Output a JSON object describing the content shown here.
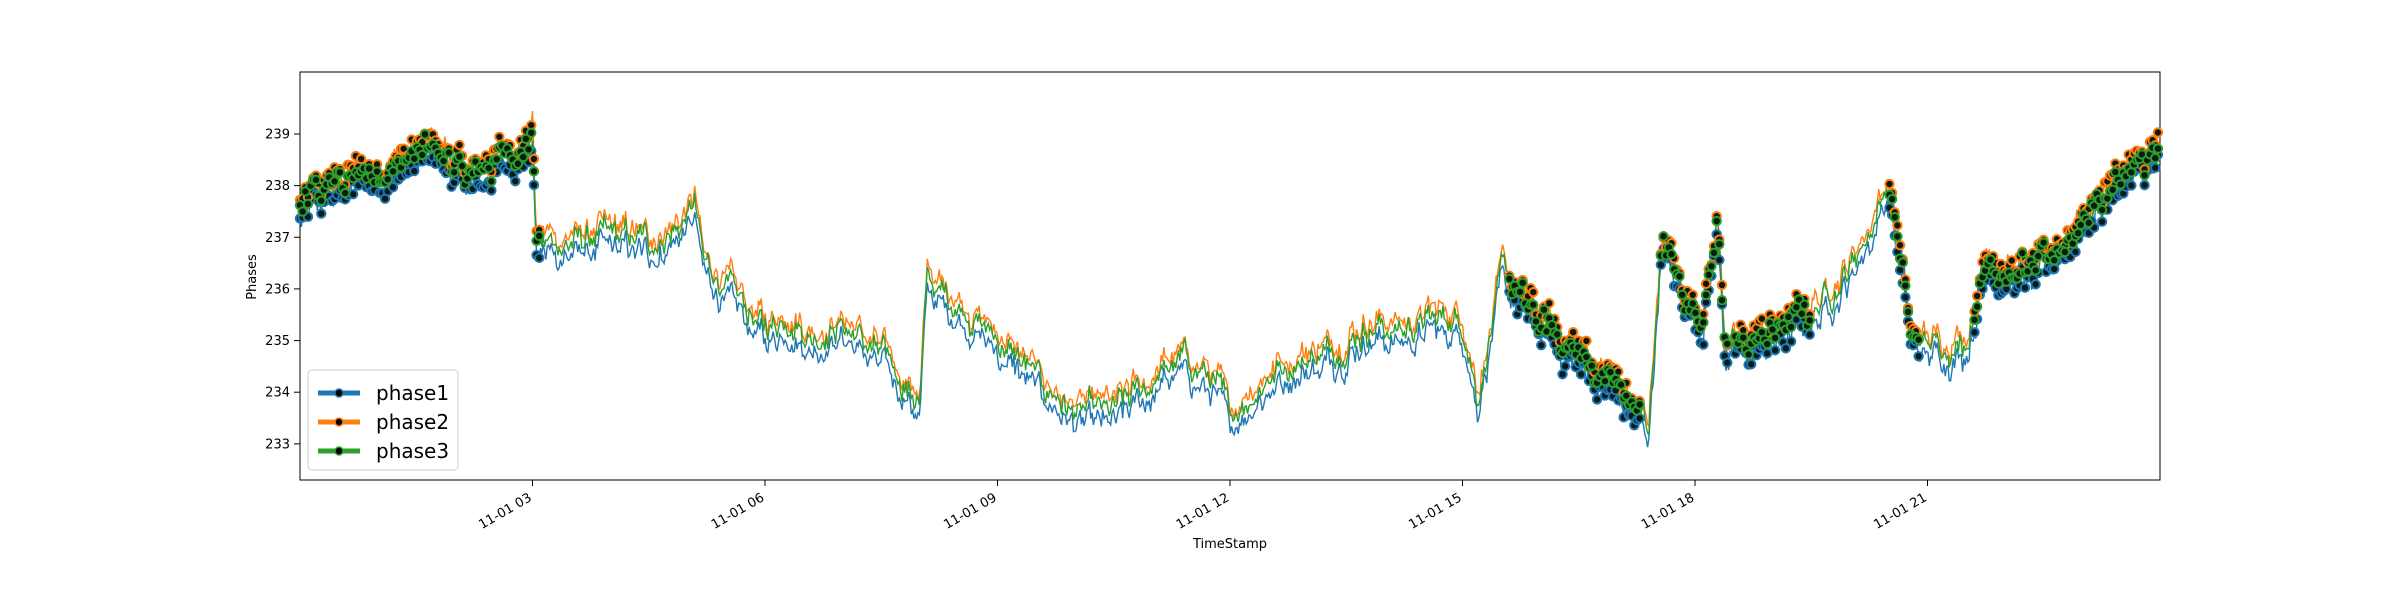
{
  "chart_data": {
    "type": "line",
    "title": "",
    "xlabel": "TimeStamp",
    "ylabel": "Phases",
    "x_range": [
      "2000-11-01T00:00",
      "2000-11-01T23:59"
    ],
    "ylim": [
      232.3,
      240.2
    ],
    "grid": false,
    "legend_position": "lower-left",
    "x_ticks": [
      {
        "label": "11-01 03",
        "hour": 3
      },
      {
        "label": "11-01 06",
        "hour": 6
      },
      {
        "label": "11-01 09",
        "hour": 9
      },
      {
        "label": "11-01 12",
        "hour": 12
      },
      {
        "label": "11-01 15",
        "hour": 15
      },
      {
        "label": "11-01 18",
        "hour": 18
      },
      {
        "label": "11-01 21",
        "hour": 21
      }
    ],
    "y_ticks": [
      233,
      234,
      235,
      236,
      237,
      238,
      239
    ],
    "series": [
      {
        "name": "phase1",
        "color": "#1f77b4"
      },
      {
        "name": "phase2",
        "color": "#ff7f0e"
      },
      {
        "name": "phase3",
        "color": "#2ca02c"
      }
    ],
    "profile": {
      "hours": [
        0,
        0.4,
        0.9,
        1.3,
        1.8,
        2.2,
        2.5,
        2.9,
        3.0,
        3.05,
        3.5,
        4.0,
        4.5,
        4.9,
        5.1,
        5.2,
        5.5,
        6.0,
        6.3,
        6.6,
        7.0,
        7.5,
        7.8,
        8.0,
        8.1,
        8.2,
        8.6,
        9.0,
        9.3,
        9.6,
        10.0,
        10.5,
        11.0,
        11.4,
        11.8,
        12.0,
        12.4,
        12.8,
        13.3,
        13.8,
        14.2,
        14.6,
        15.0,
        15.2,
        15.5,
        15.6,
        15.9,
        16.2,
        16.6,
        17.0,
        17.4,
        17.55,
        17.65,
        17.8,
        18.1,
        18.3,
        18.4,
        18.8,
        19.2,
        19.6,
        20.0,
        20.3,
        20.5,
        20.8,
        21.1,
        21.5,
        21.8,
        22.0,
        22.4,
        22.8,
        23.3,
        23.99
      ],
      "values": [
        237.5,
        238.0,
        238.2,
        238.5,
        238.7,
        238.1,
        238.5,
        238.8,
        239.1,
        236.9,
        236.9,
        237.0,
        236.9,
        237.2,
        237.6,
        236.5,
        236.0,
        235.2,
        235.5,
        235.1,
        235.3,
        234.7,
        234.2,
        233.8,
        236.3,
        236.0,
        235.6,
        235.0,
        234.6,
        234.1,
        233.6,
        233.6,
        234.2,
        234.6,
        234.2,
        233.5,
        234.2,
        234.6,
        234.8,
        235.3,
        235.2,
        235.4,
        235.4,
        234.0,
        236.2,
        236.1,
        235.5,
        235.1,
        234.6,
        234.1,
        233.3,
        236.6,
        236.8,
        236.0,
        235.5,
        237.3,
        234.8,
        235.0,
        235.3,
        235.7,
        236.4,
        237.3,
        238.1,
        235.0,
        234.9,
        235.0,
        236.8,
        236.3,
        236.3,
        237.0,
        237.9,
        238.6
      ]
    },
    "phase_offsets": {
      "phase1": -0.25,
      "phase2": 0.15,
      "phase3": 0.0
    },
    "marked_segments_hours": [
      [
        0.0,
        3.1
      ],
      [
        15.6,
        17.3
      ],
      [
        17.55,
        18.45
      ],
      [
        18.5,
        19.5
      ],
      [
        20.5,
        20.9
      ],
      [
        21.6,
        23.99
      ]
    ]
  }
}
